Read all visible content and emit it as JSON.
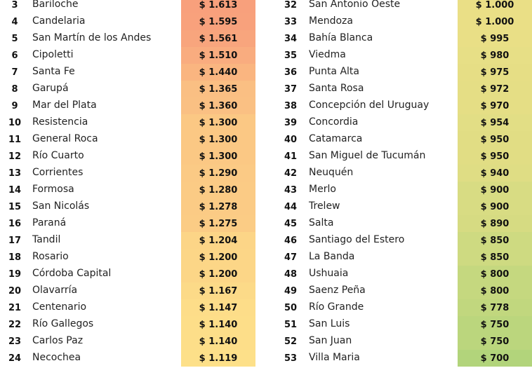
{
  "colors": {
    "high": "#f8a07c",
    "mid": "#fde38a",
    "low": "#b2d47b"
  },
  "left": [
    {
      "rank": "3",
      "city": "Bariloche",
      "price": "$ 1.613",
      "v": 1613
    },
    {
      "rank": "4",
      "city": "Candelaria",
      "price": "$ 1.595",
      "v": 1595
    },
    {
      "rank": "5",
      "city": "San Martín de los Andes",
      "price": "$ 1.561",
      "v": 1561
    },
    {
      "rank": "6",
      "city": "Cipoletti",
      "price": "$ 1.510",
      "v": 1510
    },
    {
      "rank": "7",
      "city": "Santa Fe",
      "price": "$ 1.440",
      "v": 1440
    },
    {
      "rank": "8",
      "city": "Garupá",
      "price": "$ 1.365",
      "v": 1365
    },
    {
      "rank": "9",
      "city": "Mar del Plata",
      "price": "$ 1.360",
      "v": 1360
    },
    {
      "rank": "10",
      "city": "Resistencia",
      "price": "$ 1.300",
      "v": 1300
    },
    {
      "rank": "11",
      "city": "General Roca",
      "price": "$ 1.300",
      "v": 1300
    },
    {
      "rank": "12",
      "city": "Río Cuarto",
      "price": "$ 1.300",
      "v": 1300
    },
    {
      "rank": "13",
      "city": "Corrientes",
      "price": "$ 1.290",
      "v": 1290
    },
    {
      "rank": "14",
      "city": "Formosa",
      "price": "$ 1.280",
      "v": 1280
    },
    {
      "rank": "15",
      "city": "San Nicolás",
      "price": "$ 1.278",
      "v": 1278
    },
    {
      "rank": "16",
      "city": "Paraná",
      "price": "$ 1.275",
      "v": 1275
    },
    {
      "rank": "17",
      "city": "Tandil",
      "price": "$ 1.204",
      "v": 1204
    },
    {
      "rank": "18",
      "city": "Rosario",
      "price": "$ 1.200",
      "v": 1200
    },
    {
      "rank": "19",
      "city": "Córdoba Capital",
      "price": "$ 1.200",
      "v": 1200
    },
    {
      "rank": "20",
      "city": "Olavarría",
      "price": "$ 1.167",
      "v": 1167
    },
    {
      "rank": "21",
      "city": "Centenario",
      "price": "$ 1.147",
      "v": 1147
    },
    {
      "rank": "22",
      "city": "Río Gallegos",
      "price": "$ 1.140",
      "v": 1140
    },
    {
      "rank": "23",
      "city": "Carlos Paz",
      "price": "$ 1.140",
      "v": 1140
    },
    {
      "rank": "24",
      "city": "Necochea",
      "price": "$ 1.119",
      "v": 1119
    }
  ],
  "right": [
    {
      "rank": "32",
      "city": "San Antonio Oeste",
      "price": "$ 1.000",
      "v": 1000
    },
    {
      "rank": "33",
      "city": "Mendoza",
      "price": "$ 1.000",
      "v": 1000
    },
    {
      "rank": "34",
      "city": "Bahía Blanca",
      "price": "$ 995",
      "v": 995
    },
    {
      "rank": "35",
      "city": "Viedma",
      "price": "$ 980",
      "v": 980
    },
    {
      "rank": "36",
      "city": "Punta Alta",
      "price": "$ 975",
      "v": 975
    },
    {
      "rank": "37",
      "city": "Santa Rosa",
      "price": "$ 972",
      "v": 972
    },
    {
      "rank": "38",
      "city": "Concepción del Uruguay",
      "price": "$ 970",
      "v": 970
    },
    {
      "rank": "39",
      "city": "Concordia",
      "price": "$ 954",
      "v": 954
    },
    {
      "rank": "40",
      "city": "Catamarca",
      "price": "$ 950",
      "v": 950
    },
    {
      "rank": "41",
      "city": "San Miguel de Tucumán",
      "price": "$ 950",
      "v": 950
    },
    {
      "rank": "42",
      "city": "Neuquén",
      "price": "$ 940",
      "v": 940
    },
    {
      "rank": "43",
      "city": "Merlo",
      "price": "$ 900",
      "v": 900
    },
    {
      "rank": "44",
      "city": "Trelew",
      "price": "$ 900",
      "v": 900
    },
    {
      "rank": "45",
      "city": "Salta",
      "price": "$ 890",
      "v": 890
    },
    {
      "rank": "46",
      "city": "Santiago del Estero",
      "price": "$ 850",
      "v": 850
    },
    {
      "rank": "47",
      "city": "La Banda",
      "price": "$ 850",
      "v": 850
    },
    {
      "rank": "48",
      "city": "Ushuaia",
      "price": "$ 800",
      "v": 800
    },
    {
      "rank": "49",
      "city": "Saenz Peña",
      "price": "$ 800",
      "v": 800
    },
    {
      "rank": "50",
      "city": "Río Grande",
      "price": "$ 778",
      "v": 778
    },
    {
      "rank": "51",
      "city": "San Luis",
      "price": "$ 750",
      "v": 750
    },
    {
      "rank": "52",
      "city": "San Juan",
      "price": "$ 750",
      "v": 750
    },
    {
      "rank": "53",
      "city": "Villa Maria",
      "price": "$ 700",
      "v": 700
    }
  ]
}
